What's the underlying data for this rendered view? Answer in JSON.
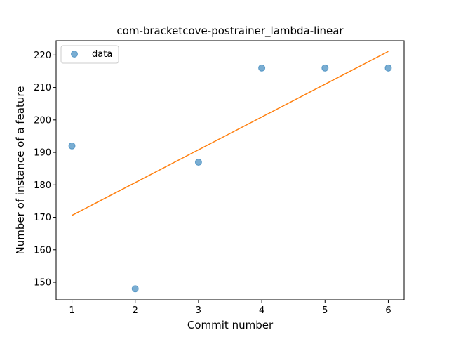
{
  "chart_data": {
    "type": "scatter",
    "title": "com-bracketcove-postrainer_lambda-linear",
    "xlabel": "Commit number",
    "ylabel": "Number of instance of a feature",
    "xlim": [
      0.75,
      6.25
    ],
    "ylim": [
      144.6,
      224.4
    ],
    "xticks": [
      1,
      2,
      3,
      4,
      5,
      6
    ],
    "yticks": [
      150,
      160,
      170,
      180,
      190,
      200,
      210,
      220
    ],
    "grid": false,
    "legend_position": "top-left",
    "series": [
      {
        "name": "data",
        "kind": "points",
        "color": "#1f77b4",
        "x": [
          1,
          2,
          3,
          4,
          5,
          6
        ],
        "y": [
          192,
          148,
          187,
          216,
          216,
          216
        ]
      },
      {
        "kind": "line",
        "color": "#ff7f0e",
        "x": [
          1,
          6
        ],
        "y": [
          170.6,
          221.1
        ]
      }
    ]
  }
}
